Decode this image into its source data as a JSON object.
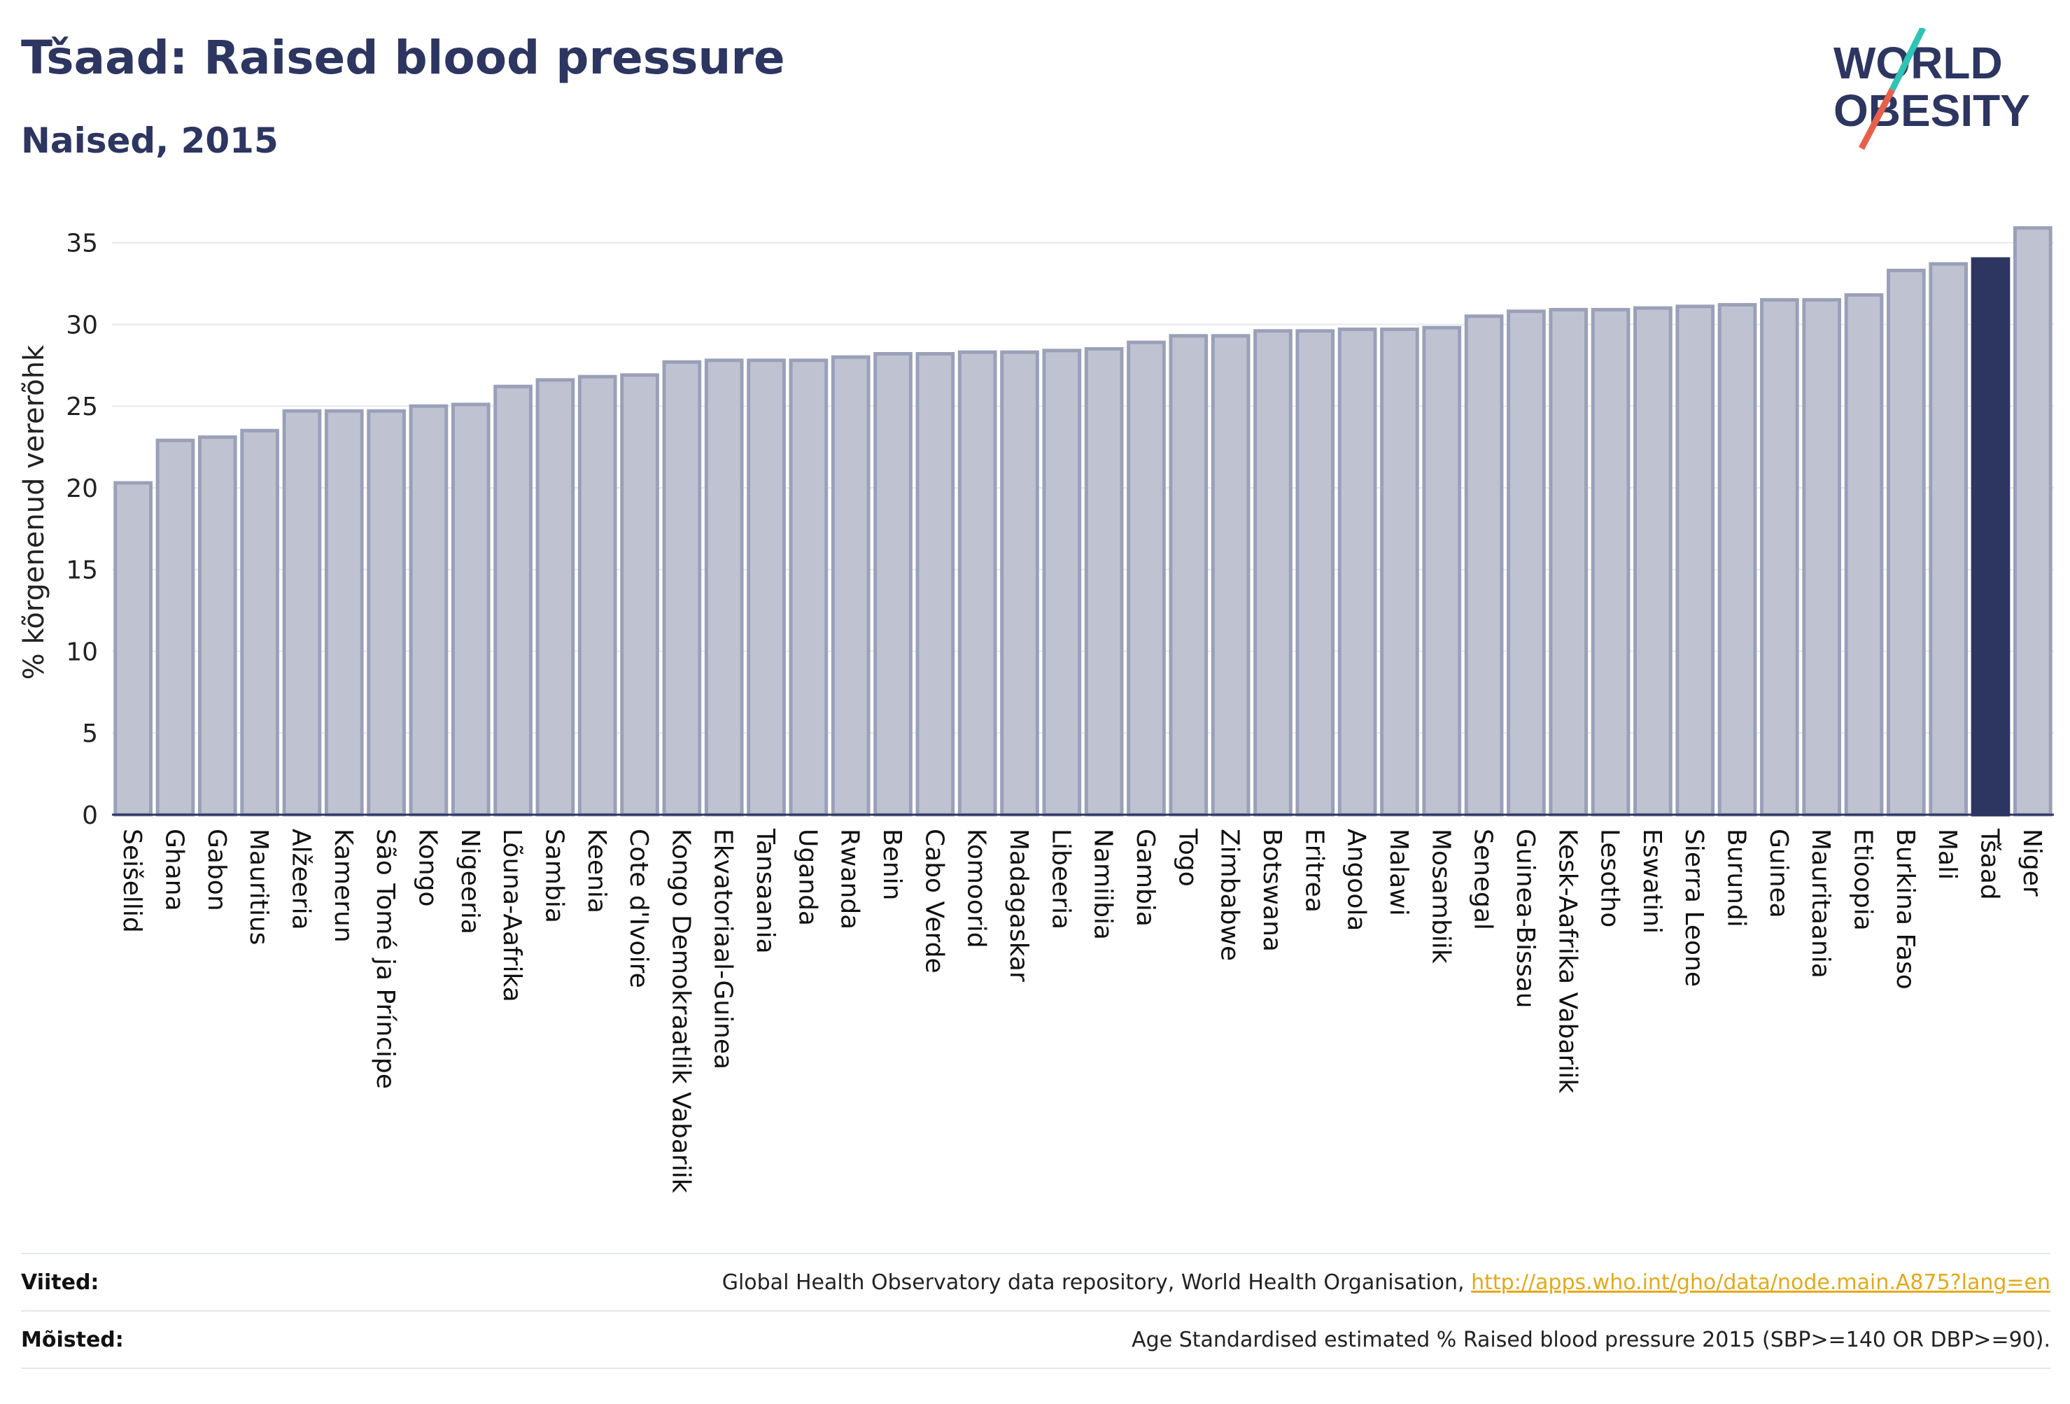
{
  "title": "Tšaad: Raised blood pressure",
  "subtitle": "Naised, 2015",
  "logo": {
    "line1": "WORLD",
    "line2": "OBESITY",
    "accent_colors": [
      "#2ec4b6",
      "#e8604c"
    ]
  },
  "colors": {
    "bar": "#bfc3d1",
    "bar_edge": "#9aa0b8",
    "highlight": "#2d3561",
    "text": "#2d3561",
    "grid": "#e6e8ef"
  },
  "chart_data": {
    "type": "bar",
    "title": "Tšaad: Raised blood pressure",
    "subtitle": "Naised, 2015",
    "ylabel": "% kõrgenenud vererõhk",
    "ylim": [
      0,
      37
    ],
    "yticks": [
      0,
      5,
      10,
      15,
      20,
      25,
      30,
      35
    ],
    "grid": true,
    "highlight": "Tšaad",
    "categories": [
      "Seišellid",
      "Ghana",
      "Gabon",
      "Mauritius",
      "Alžeeria",
      "Kamerun",
      "São Tomé ja Príncipe",
      "Kongo",
      "Nigeeria",
      "Lõuna-Aafrika",
      "Sambia",
      "Keenia",
      "Cote d'Ivoire",
      "Kongo Demokraatlik Vabariik",
      "Ekvatoriaal-Guinea",
      "Tansaania",
      "Uganda",
      "Rwanda",
      "Benin",
      "Cabo Verde",
      "Komoorid",
      "Madagaskar",
      "Libeeria",
      "Namiibia",
      "Gambia",
      "Togo",
      "Zimbabwe",
      "Botswana",
      "Eritrea",
      "Angoola",
      "Malawi",
      "Mosambiik",
      "Senegal",
      "Guinea-Bissau",
      "Kesk-Aafrika Vabariik",
      "Lesotho",
      "Eswatini",
      "Sierra Leone",
      "Burundi",
      "Guinea",
      "Mauritaania",
      "Etioopia",
      "Burkina Faso",
      "Mali",
      "Tšaad",
      "Niger"
    ],
    "values": [
      20.3,
      22.9,
      23.1,
      23.5,
      24.7,
      24.7,
      24.7,
      25.0,
      25.1,
      26.2,
      26.6,
      26.8,
      26.9,
      27.7,
      27.8,
      27.8,
      27.8,
      28.0,
      28.2,
      28.2,
      28.3,
      28.3,
      28.4,
      28.5,
      28.9,
      29.3,
      29.3,
      29.6,
      29.6,
      29.7,
      29.7,
      29.8,
      30.5,
      30.8,
      30.9,
      30.9,
      31.0,
      31.1,
      31.2,
      31.5,
      31.5,
      31.8,
      33.3,
      33.7,
      34.0,
      35.9
    ]
  },
  "footer": {
    "sources_label": "Viited:",
    "sources_text": "Global Health Observatory data repository, World Health Organisation,",
    "sources_link": "http://apps.who.int/gho/data/node.main.A875?lang=en",
    "definitions_label": "Mõisted:",
    "definitions_text": "Age Standardised estimated % Raised blood pressure 2015 (SBP>=140 OR DBP>=90)."
  }
}
